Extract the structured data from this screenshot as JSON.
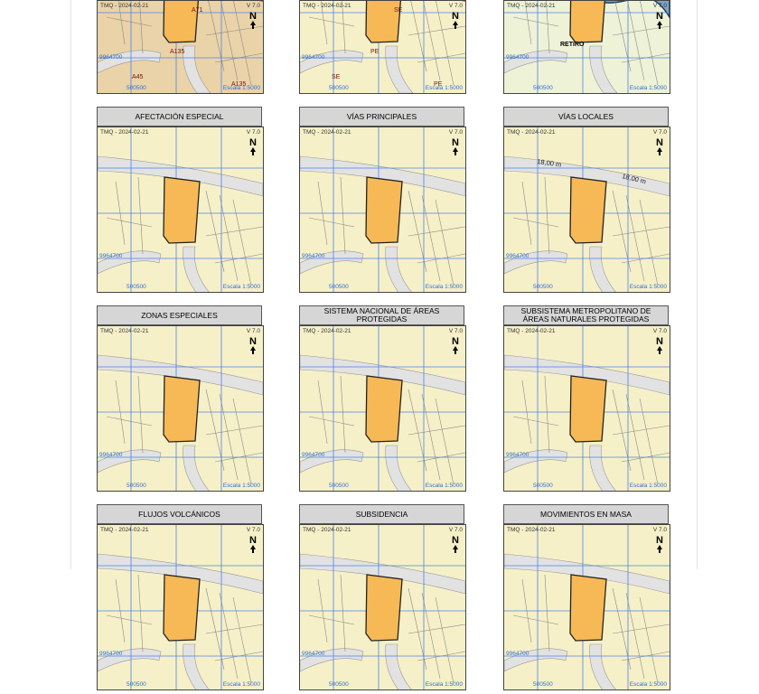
{
  "map_labels": {
    "date": "TMQ - 2024-02-21",
    "version": "V 7.0",
    "north": "N",
    "northing": "9964700",
    "easting": "500500",
    "scale": "Escala 1:5000"
  },
  "top_maps": [
    {
      "labels": [
        "A71",
        "A135",
        "A45",
        "A135"
      ]
    },
    {
      "labels": [
        "SE",
        "PE",
        "SE",
        "PE"
      ]
    },
    {
      "labels": [
        "RETIRO"
      ]
    }
  ],
  "panels": [
    {
      "title": "AFECTACIÓN ESPECIAL"
    },
    {
      "title": "VÍAS PRINCIPALES"
    },
    {
      "title": "VÍAS LOCALES",
      "labels": [
        "18,00 m",
        "18,00 m"
      ]
    },
    {
      "title": "ZONAS ESPECIALES"
    },
    {
      "title": "SISTEMA NACIONAL DE ÁREAS PROTEGIDAS"
    },
    {
      "title": "SUBSISTEMA METROPOLITANO DE ÁREAS NATURALES PROTEGIDAS"
    },
    {
      "title": "FLUJOS VOLCÁNICOS"
    },
    {
      "title": "SUBSIDENCIA"
    },
    {
      "title": "MOVIMIENTOS EN MASA"
    }
  ]
}
